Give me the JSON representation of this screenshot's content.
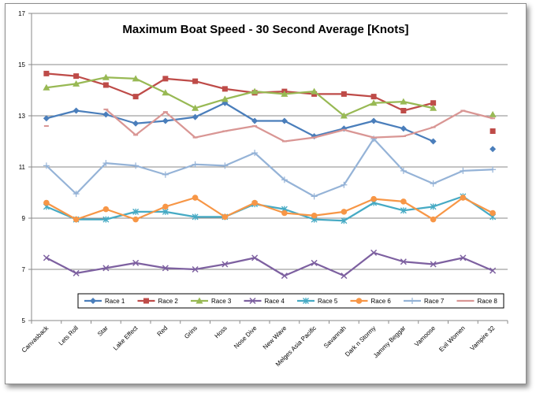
{
  "chart_data": {
    "type": "line",
    "title": "Maximum Boat Speed - 30 Second Average [Knots]",
    "xlabel": "",
    "ylabel": "",
    "ylim": [
      5,
      17
    ],
    "yticks": [
      5,
      7,
      9,
      11,
      13,
      15,
      17
    ],
    "grid": true,
    "legend_position": "bottom",
    "categories": [
      "Canvasback",
      "Lets Roll",
      "Star",
      "Lake Effect",
      "Red",
      "Grins",
      "Hoss",
      "Nose Dive",
      "New Wave",
      "Melges Asia Pacific",
      "Savannah",
      "Dark n Stormy",
      "Jammy Beggar",
      "Vamoose",
      "Evil Women",
      "Vampire 32"
    ],
    "series": [
      {
        "name": "Race 1",
        "color": "#4a7ebb",
        "marker": "diamond",
        "values": [
          12.9,
          13.2,
          13.05,
          12.7,
          12.8,
          12.95,
          13.5,
          12.8,
          12.8,
          12.2,
          12.5,
          12.8,
          12.5,
          12.0,
          null,
          11.7
        ]
      },
      {
        "name": "Race 2",
        "color": "#be4b48",
        "marker": "square",
        "values": [
          14.65,
          14.55,
          14.2,
          13.75,
          14.45,
          14.35,
          14.05,
          13.9,
          13.95,
          13.85,
          13.85,
          13.75,
          13.2,
          13.5,
          null,
          12.4
        ]
      },
      {
        "name": "Race 3",
        "color": "#98b954",
        "marker": "triangle",
        "values": [
          14.1,
          14.25,
          14.5,
          14.45,
          13.9,
          13.3,
          13.65,
          13.95,
          13.85,
          13.95,
          13.0,
          13.5,
          13.55,
          13.3,
          null,
          13.05
        ]
      },
      {
        "name": "Race 4",
        "color": "#7d60a0",
        "marker": "x",
        "values": [
          7.45,
          6.85,
          7.05,
          7.25,
          7.05,
          7.0,
          7.2,
          7.45,
          6.75,
          7.25,
          6.75,
          7.65,
          7.3,
          7.2,
          7.45,
          6.95
        ]
      },
      {
        "name": "Race 5",
        "color": "#46aac4",
        "marker": "star",
        "values": [
          9.45,
          8.95,
          8.95,
          9.25,
          9.25,
          9.05,
          9.05,
          9.55,
          9.35,
          8.95,
          8.9,
          9.6,
          9.3,
          9.45,
          9.85,
          9.05
        ]
      },
      {
        "name": "Race 6",
        "color": "#f79646",
        "marker": "circle",
        "values": [
          9.6,
          8.95,
          9.35,
          8.95,
          9.45,
          9.8,
          9.05,
          9.6,
          9.2,
          9.1,
          9.25,
          9.75,
          9.65,
          8.95,
          9.8,
          9.2
        ]
      },
      {
        "name": "Race 7",
        "color": "#95b3d7",
        "marker": "plus",
        "values": [
          11.05,
          9.95,
          11.15,
          11.05,
          10.7,
          11.1,
          11.05,
          11.55,
          10.5,
          9.85,
          10.3,
          12.1,
          10.85,
          10.35,
          10.85,
          10.9
        ]
      },
      {
        "name": "Race 8",
        "color": "#d99694",
        "marker": "dash",
        "values": [
          12.6,
          null,
          13.25,
          12.25,
          13.15,
          12.15,
          12.4,
          12.6,
          12.0,
          12.15,
          12.45,
          12.15,
          12.2,
          12.55,
          13.2,
          12.9
        ]
      }
    ]
  }
}
